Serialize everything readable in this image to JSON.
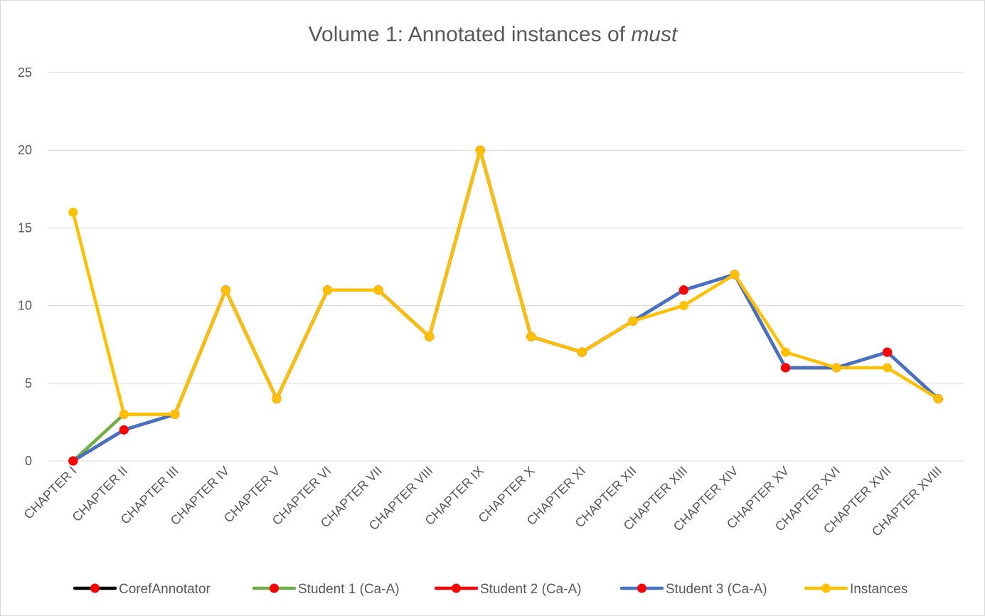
{
  "chart_data": {
    "type": "line",
    "title_prefix": "Volume 1: Annotated instances of ",
    "title_emphasis": "must",
    "xlabel": "",
    "ylabel": "",
    "ylim": [
      0,
      25
    ],
    "yticks": [
      0,
      5,
      10,
      15,
      20,
      25
    ],
    "grid": true,
    "legend_position": "bottom",
    "categories": [
      "CHAPTER I",
      "CHAPTER II",
      "CHAPTER III",
      "CHAPTER IV",
      "CHAPTER V",
      "CHAPTER VI",
      "CHAPTER VII",
      "CHAPTER VIII",
      "CHAPTER IX",
      "CHAPTER X",
      "CHAPTER XI",
      "CHAPTER XII",
      "CHAPTER XIII",
      "CHAPTER XIV",
      "CHAPTER XV",
      "CHAPTER XVI",
      "CHAPTER XVII",
      "CHAPTER XVIII"
    ],
    "series": [
      {
        "name": "CorefAnnotator",
        "line_color": "#000000",
        "marker_color": "#ff0000",
        "values": [
          0,
          2,
          3,
          11,
          4,
          11,
          11,
          8,
          20,
          8,
          7,
          9,
          11,
          12,
          6,
          6,
          7,
          4
        ]
      },
      {
        "name": "Student 1 (Ca-A)",
        "line_color": "#70ad47",
        "marker_color": "#ff0000",
        "values": [
          0,
          3,
          3,
          11,
          4,
          11,
          11,
          8,
          20,
          8,
          7,
          9,
          11,
          12,
          6,
          6,
          7,
          4
        ]
      },
      {
        "name": "Student 2 (Ca-A)",
        "line_color": "#ff0000",
        "marker_color": "#ff0000",
        "values": [
          0,
          2,
          3,
          11,
          4,
          11,
          11,
          8,
          20,
          8,
          7,
          9,
          11,
          12,
          6,
          6,
          7,
          4
        ]
      },
      {
        "name": "Student 3 (Ca-A)",
        "line_color": "#4472c4",
        "marker_color": "#ff0000",
        "values": [
          0,
          2,
          3,
          11,
          4,
          11,
          11,
          8,
          20,
          8,
          7,
          9,
          11,
          12,
          6,
          6,
          7,
          4
        ]
      },
      {
        "name": "Instances",
        "line_color": "#ffc000",
        "marker_color": "#ffc000",
        "values": [
          16,
          3,
          3,
          11,
          4,
          11,
          11,
          8,
          20,
          8,
          7,
          9,
          10,
          12,
          7,
          6,
          6,
          4
        ]
      }
    ]
  }
}
